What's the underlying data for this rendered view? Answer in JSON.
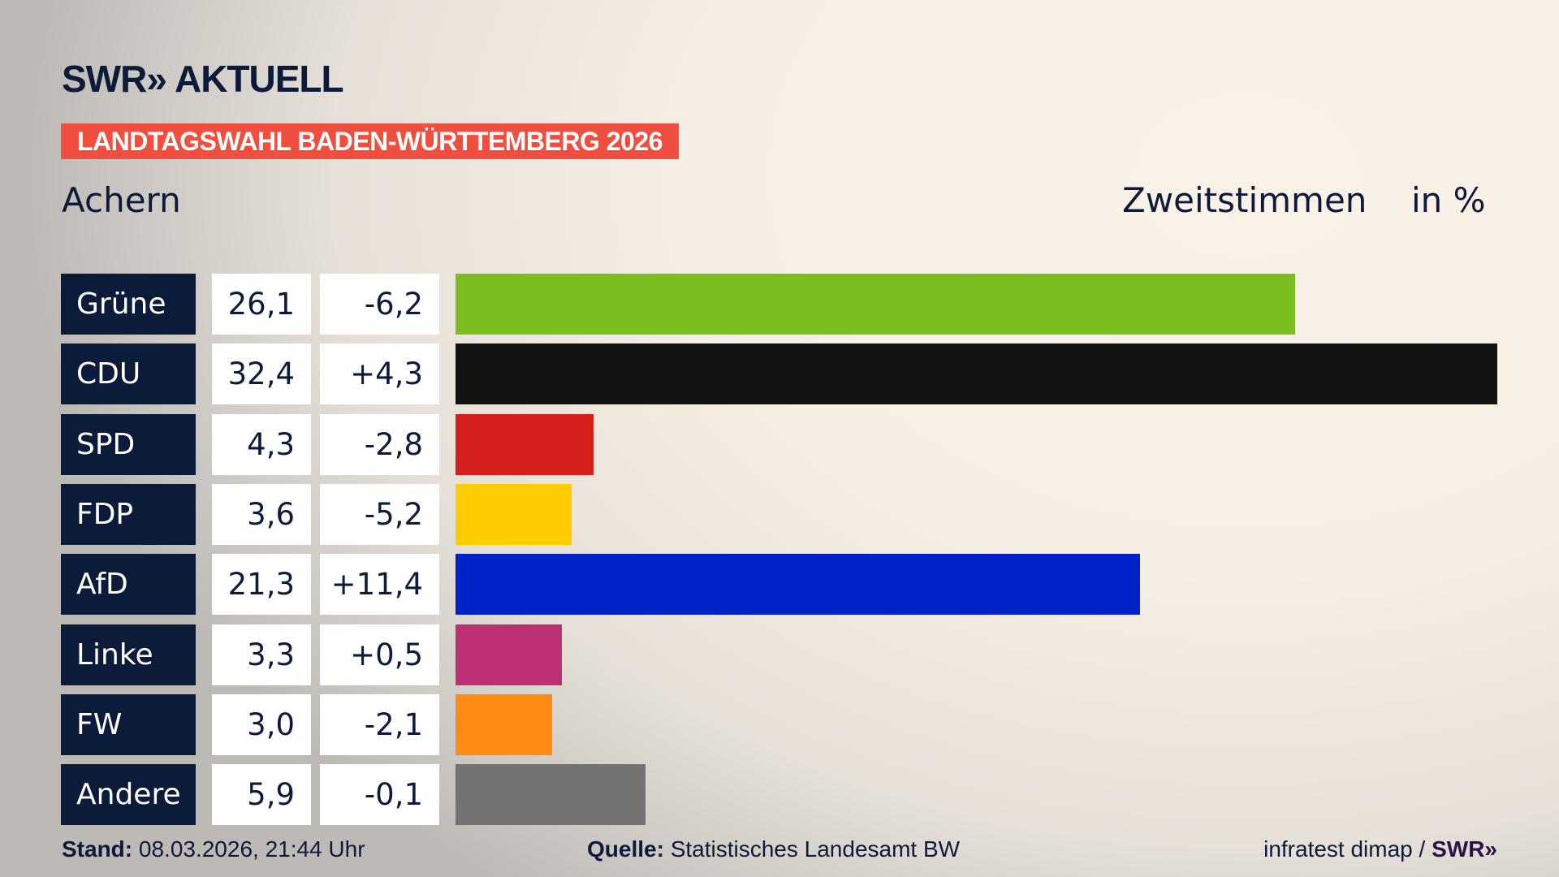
{
  "header": {
    "logo": "SWR» AKTUELL",
    "banner": "LANDTAGSWAHL BADEN-WÜRTTEMBERG 2026",
    "place": "Achern",
    "kind": "Zweitstimmen",
    "unit": "in %"
  },
  "chart_data": {
    "type": "bar",
    "orientation": "horizontal",
    "xlim": [
      0,
      32.4
    ],
    "categories": [
      "Grüne",
      "CDU",
      "SPD",
      "FDP",
      "AfD",
      "Linke",
      "FW",
      "Andere"
    ],
    "values": [
      26.1,
      32.4,
      4.3,
      3.6,
      21.3,
      3.3,
      3.0,
      5.9
    ],
    "value_labels": [
      "26,1",
      "32,4",
      "4,3",
      "3,6",
      "21,3",
      "3,3",
      "3,0",
      "5,9"
    ],
    "diff_labels": [
      "-6,2",
      "+4,3",
      "-2,8",
      "-5,2",
      "+11,4",
      "+0,5",
      "-2,1",
      "-0,1"
    ],
    "colors": [
      "#7abf1f",
      "#121212",
      "#d71f1d",
      "#ffcc00",
      "#0021c8",
      "#bd3075",
      "#ff8b14",
      "#737373"
    ]
  },
  "footer": {
    "stand_label": "Stand:",
    "stand_value": "08.03.2026, 21:44 Uhr",
    "source_label": "Quelle:",
    "source_value": "Statistisches Landesamt BW",
    "credit": "infratest dimap / ",
    "credit_logo": "SWR»"
  }
}
